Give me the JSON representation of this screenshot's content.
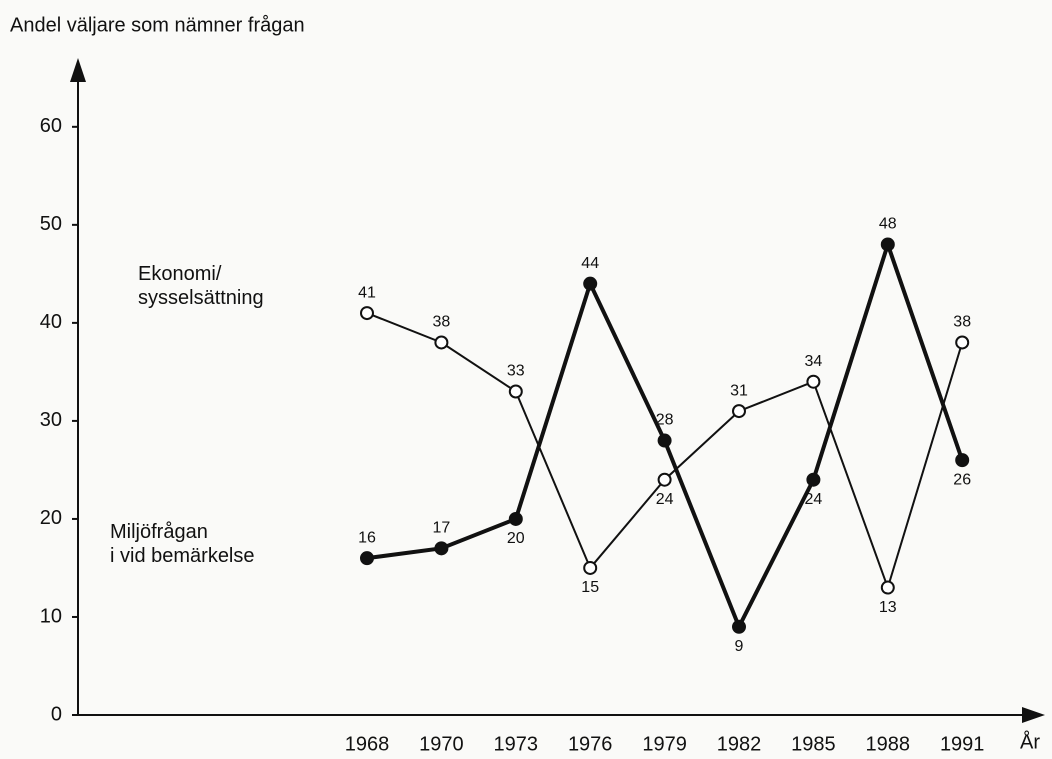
{
  "chart_data": {
    "type": "line",
    "ylabel": "Andel väljare som nämner frågan",
    "xlabel": "År",
    "categories": [
      "1968",
      "1970",
      "1973",
      "1976",
      "1979",
      "1982",
      "1985",
      "1988",
      "1991"
    ],
    "series": [
      {
        "name": "Ekonomi/\nsysselsättning",
        "color": "#111111",
        "marker": "open",
        "values": [
          41,
          38,
          33,
          15,
          24,
          31,
          34,
          13,
          38
        ]
      },
      {
        "name": "Miljöfrågan\ni vid bemärkelse",
        "color": "#111111",
        "marker": "filled",
        "values": [
          16,
          17,
          20,
          44,
          28,
          9,
          24,
          48,
          26
        ]
      }
    ],
    "ylim": [
      0,
      66
    ],
    "yticks": [
      0,
      10,
      20,
      30,
      40,
      50,
      60
    ]
  }
}
